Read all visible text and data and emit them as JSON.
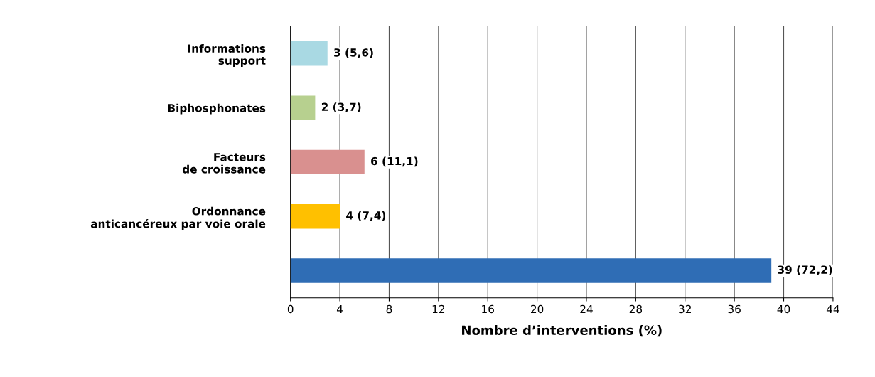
{
  "chart_data": {
    "type": "bar",
    "orientation": "horizontal",
    "categories": [
      "Informations\nsupport",
      "Biphosphonates",
      "Facteurs\nde croissance",
      "Ordonnance\nanticancéreux par voie orale",
      null
    ],
    "values": [
      3,
      2,
      6,
      4,
      39
    ],
    "colors": [
      "#a9d9e3",
      "#b7d08f",
      "#d9908f",
      "#ffc000",
      "#2f6db5"
    ],
    "value_labels": [
      "3 (5,6)",
      "2 (3,7)",
      "6 (11,1)",
      "4 (7,4)",
      "39 (72,2)"
    ],
    "xlabel": "Nombre d’interventions (%)",
    "xlim": [
      0,
      44
    ],
    "xticks": [
      0,
      4,
      8,
      12,
      16,
      20,
      24,
      28,
      32,
      36,
      40,
      44
    ],
    "grid": "x"
  }
}
